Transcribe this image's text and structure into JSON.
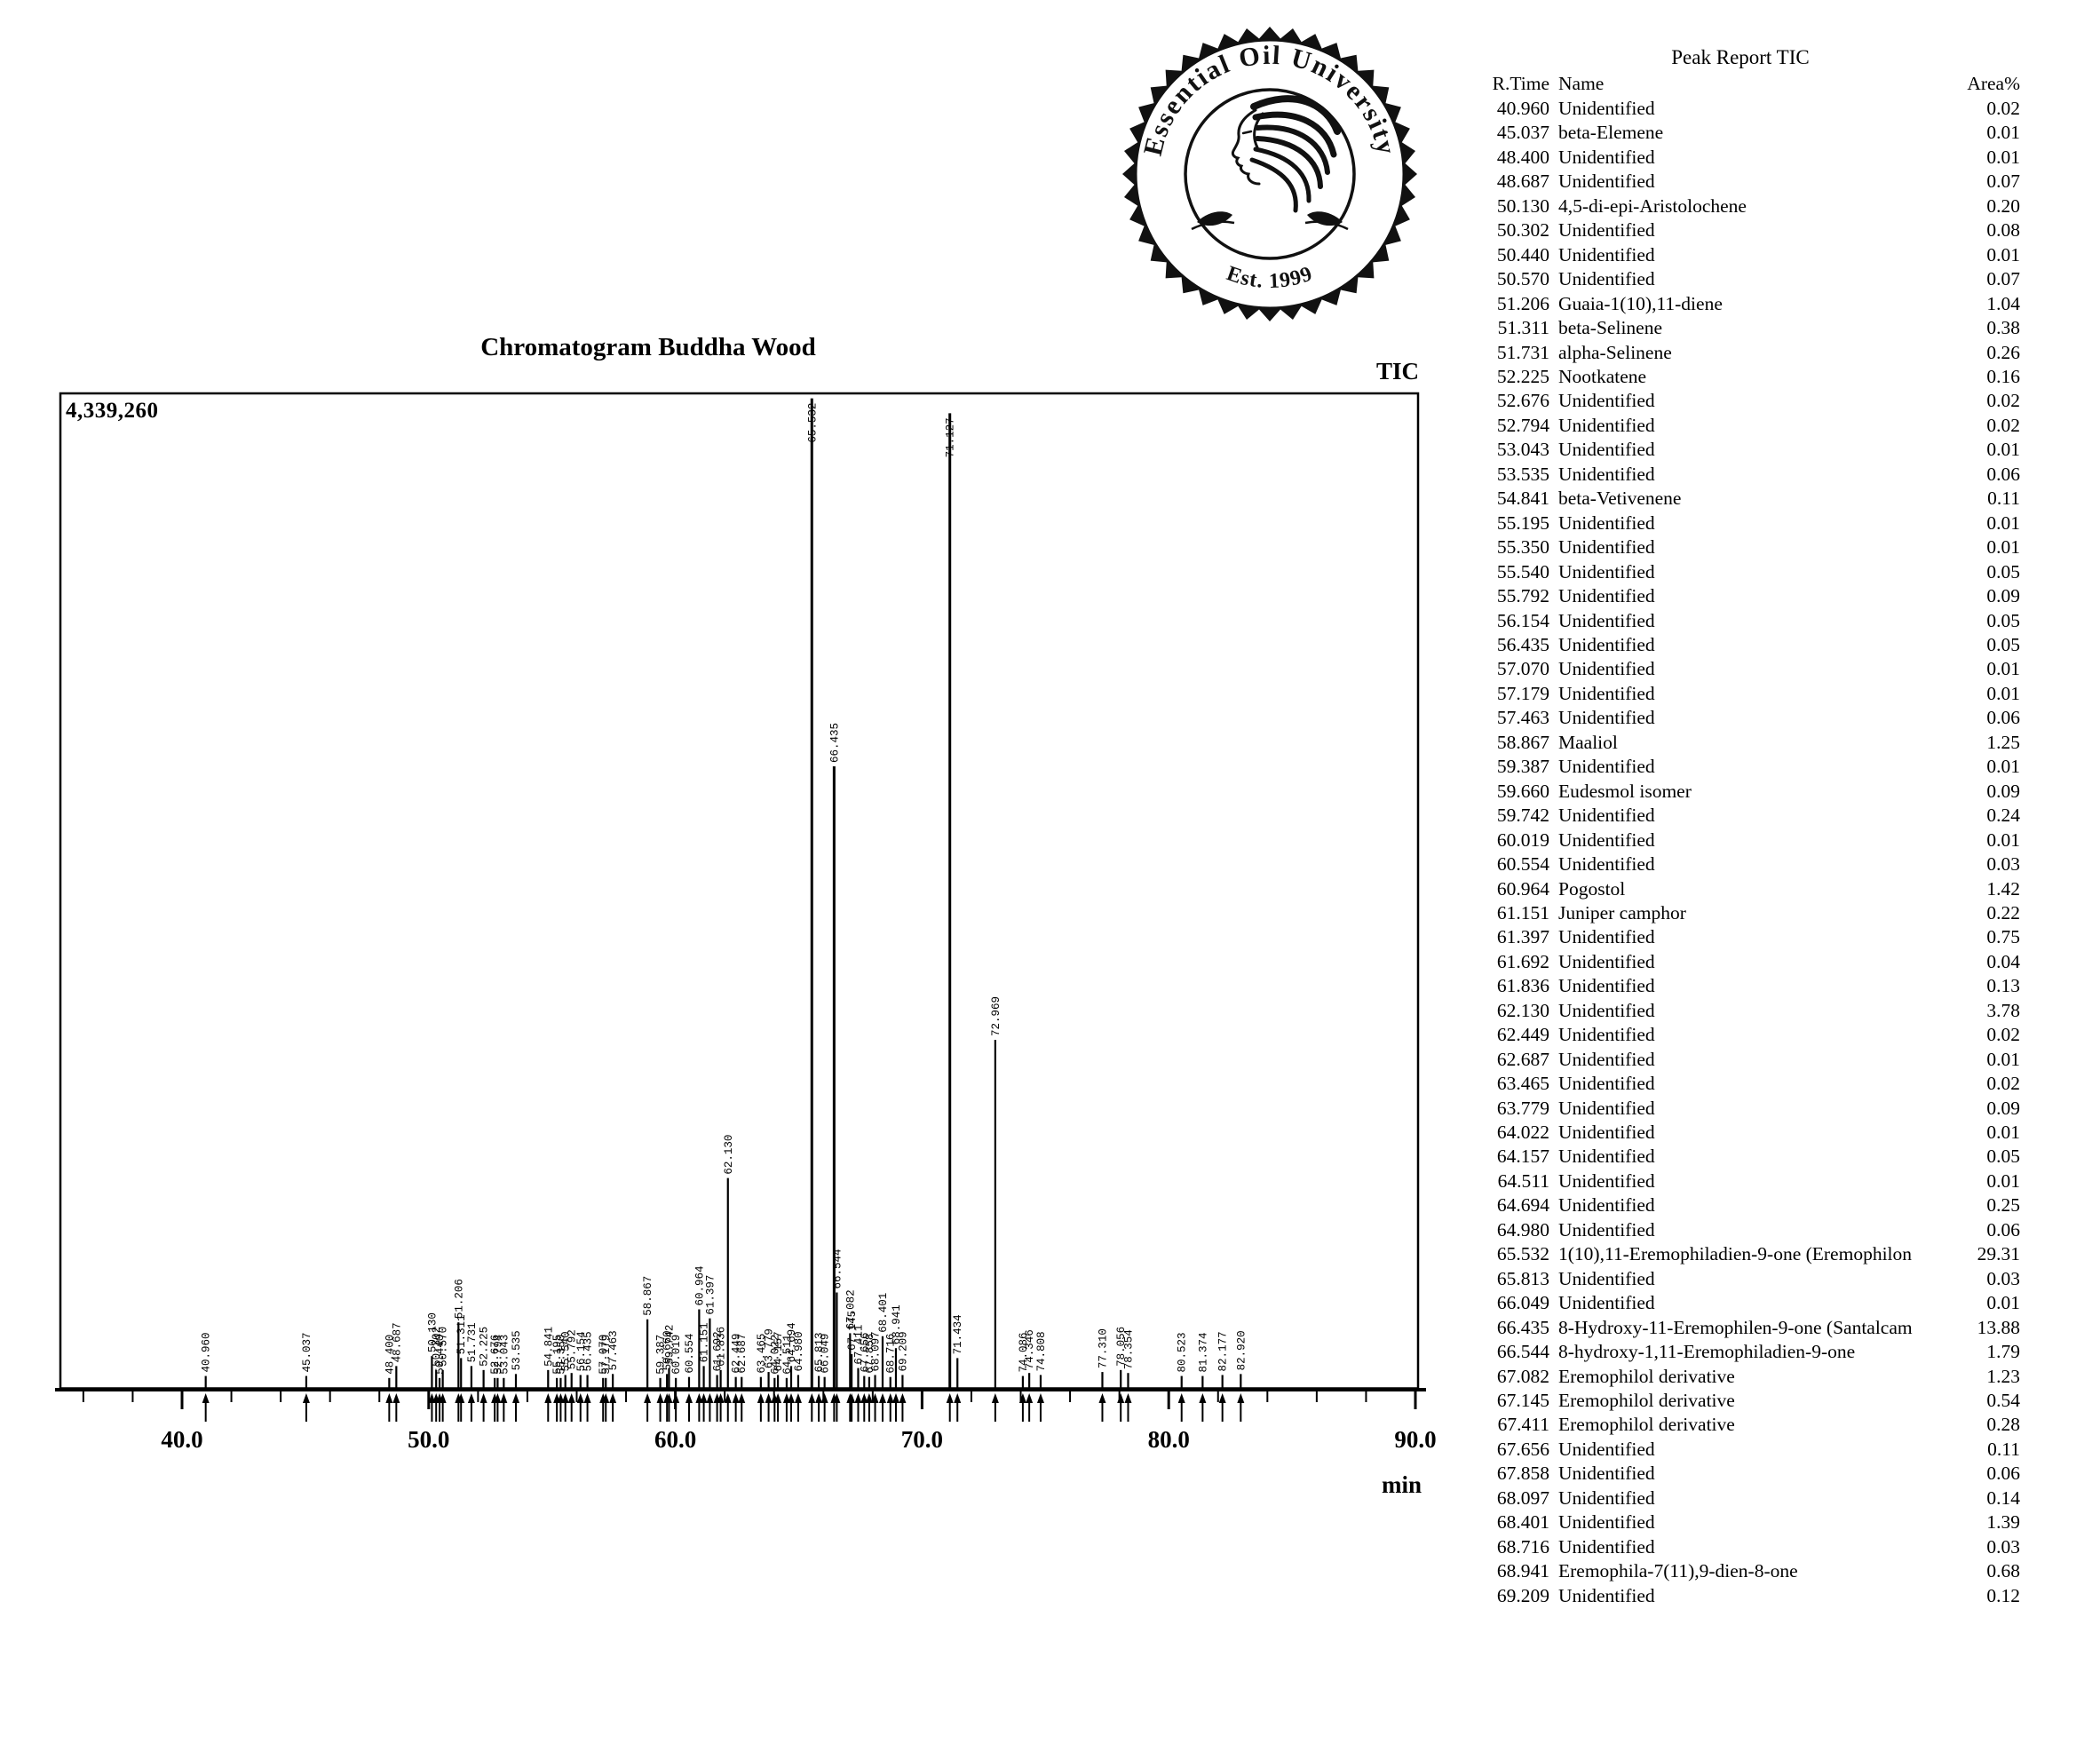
{
  "logo": {
    "arc_text": "Essential Oil University",
    "est_text": "Est. 1999"
  },
  "chart_data": {
    "type": "line",
    "title": "Chromatogram Buddha Wood",
    "signal": "TIC",
    "xlabel": "min",
    "y_full_scale": 4339260,
    "y_full_scale_label": "4,339,260",
    "x_range": [
      35.1,
      90.1
    ],
    "x_ticks": [
      40,
      50,
      60,
      70,
      80,
      90
    ],
    "x_tick_labels": [
      "40.0",
      "50.0",
      "60.0",
      "70.0",
      "80.0",
      "90.0"
    ],
    "minor_tick_step": 2,
    "grid": false,
    "peaks": [
      {
        "rt": "40.960",
        "h": 0.012,
        "area": "0.02"
      },
      {
        "rt": "45.037",
        "h": 0.012,
        "area": "0.01"
      },
      {
        "rt": "48.400",
        "h": 0.01,
        "area": "0.01"
      },
      {
        "rt": "48.687",
        "h": 0.022,
        "area": "0.07"
      },
      {
        "rt": "50.130",
        "h": 0.032,
        "area": "0.20"
      },
      {
        "rt": "50.302",
        "h": 0.018,
        "area": "0.08"
      },
      {
        "rt": "50.440",
        "h": 0.01,
        "area": "0.01"
      },
      {
        "rt": "50.570",
        "h": 0.018,
        "area": "0.07"
      },
      {
        "rt": "51.206",
        "h": 0.066,
        "area": "1.04"
      },
      {
        "rt": "51.311",
        "h": 0.03,
        "area": "0.38"
      },
      {
        "rt": "51.731",
        "h": 0.022,
        "area": "0.26"
      },
      {
        "rt": "52.225",
        "h": 0.018,
        "area": "0.16"
      },
      {
        "rt": "52.676",
        "h": 0.01,
        "area": "0.02"
      },
      {
        "rt": "52.794",
        "h": 0.01,
        "area": "0.02"
      },
      {
        "rt": "53.043",
        "h": 0.01,
        "area": "0.01"
      },
      {
        "rt": "53.535",
        "h": 0.014,
        "area": "0.06"
      },
      {
        "rt": "54.841",
        "h": 0.018,
        "area": "0.11"
      },
      {
        "rt": "55.195",
        "h": 0.01,
        "area": "0.01"
      },
      {
        "rt": "55.350",
        "h": 0.01,
        "area": "0.01"
      },
      {
        "rt": "55.540",
        "h": 0.013,
        "area": "0.05"
      },
      {
        "rt": "55.792",
        "h": 0.015,
        "area": "0.09"
      },
      {
        "rt": "56.154",
        "h": 0.013,
        "area": "0.05"
      },
      {
        "rt": "56.435",
        "h": 0.013,
        "area": "0.05"
      },
      {
        "rt": "57.070",
        "h": 0.01,
        "area": "0.01"
      },
      {
        "rt": "57.179",
        "h": 0.01,
        "area": "0.01"
      },
      {
        "rt": "57.463",
        "h": 0.014,
        "area": "0.06"
      },
      {
        "rt": "58.867",
        "h": 0.069,
        "area": "1.25"
      },
      {
        "rt": "59.387",
        "h": 0.01,
        "area": "0.01"
      },
      {
        "rt": "59.660",
        "h": 0.014,
        "area": "0.09"
      },
      {
        "rt": "59.742",
        "h": 0.02,
        "area": "0.24"
      },
      {
        "rt": "60.019",
        "h": 0.01,
        "area": "0.01"
      },
      {
        "rt": "60.554",
        "h": 0.011,
        "area": "0.03"
      },
      {
        "rt": "60.964",
        "h": 0.079,
        "area": "1.42"
      },
      {
        "rt": "61.151",
        "h": 0.022,
        "area": "0.22"
      },
      {
        "rt": "61.397",
        "h": 0.07,
        "area": "0.75"
      },
      {
        "rt": "61.692",
        "h": 0.013,
        "area": "0.04"
      },
      {
        "rt": "61.836",
        "h": 0.018,
        "area": "0.13"
      },
      {
        "rt": "62.130",
        "h": 0.211,
        "area": "3.78"
      },
      {
        "rt": "62.449",
        "h": 0.011,
        "area": "0.02"
      },
      {
        "rt": "62.687",
        "h": 0.011,
        "area": "0.01"
      },
      {
        "rt": "63.465",
        "h": 0.011,
        "area": "0.02"
      },
      {
        "rt": "63.779",
        "h": 0.016,
        "area": "0.09"
      },
      {
        "rt": "64.022",
        "h": 0.01,
        "area": "0.01"
      },
      {
        "rt": "64.157",
        "h": 0.013,
        "area": "0.05"
      },
      {
        "rt": "64.511",
        "h": 0.01,
        "area": "0.01"
      },
      {
        "rt": "64.694",
        "h": 0.022,
        "area": "0.25"
      },
      {
        "rt": "64.980",
        "h": 0.013,
        "area": "0.06"
      },
      {
        "rt": "65.532",
        "h": 0.995,
        "area": "29.31"
      },
      {
        "rt": "65.813",
        "h": 0.012,
        "area": "0.03"
      },
      {
        "rt": "66.049",
        "h": 0.011,
        "area": "0.01"
      },
      {
        "rt": "66.435",
        "h": 0.625,
        "area": "13.88"
      },
      {
        "rt": "66.544",
        "h": 0.096,
        "area": "1.79"
      },
      {
        "rt": "67.082",
        "h": 0.055,
        "area": "1.23"
      },
      {
        "rt": "67.145",
        "h": 0.034,
        "area": "0.54"
      },
      {
        "rt": "67.411",
        "h": 0.02,
        "area": "0.28"
      },
      {
        "rt": "67.656",
        "h": 0.012,
        "area": "0.11"
      },
      {
        "rt": "67.858",
        "h": 0.011,
        "area": "0.06"
      },
      {
        "rt": "68.097",
        "h": 0.013,
        "area": "0.14"
      },
      {
        "rt": "68.401",
        "h": 0.052,
        "area": "1.39"
      },
      {
        "rt": "68.716",
        "h": 0.011,
        "area": "0.03"
      },
      {
        "rt": "68.941",
        "h": 0.04,
        "area": "0.68"
      },
      {
        "rt": "69.209",
        "h": 0.013,
        "area": "0.12"
      },
      {
        "rt": "71.127",
        "h": 0.98
      },
      {
        "rt": "71.434",
        "h": 0.03
      },
      {
        "rt": "72.969",
        "h": 0.35
      },
      {
        "rt": "74.086",
        "h": 0.012
      },
      {
        "rt": "74.346",
        "h": 0.015
      },
      {
        "rt": "74.808",
        "h": 0.013
      },
      {
        "rt": "77.310",
        "h": 0.016
      },
      {
        "rt": "78.056",
        "h": 0.018
      },
      {
        "rt": "78.354",
        "h": 0.015
      },
      {
        "rt": "80.523",
        "h": 0.012
      },
      {
        "rt": "81.374",
        "h": 0.012
      },
      {
        "rt": "82.177",
        "h": 0.013
      },
      {
        "rt": "82.920",
        "h": 0.014
      }
    ]
  },
  "table": {
    "title": "Peak Report TIC",
    "columns": [
      "R.Time",
      "Name",
      "Area%"
    ],
    "rows": [
      [
        "40.960",
        "Unidentified",
        "0.02"
      ],
      [
        "45.037",
        "beta-Elemene",
        "0.01"
      ],
      [
        "48.400",
        "Unidentified",
        "0.01"
      ],
      [
        "48.687",
        "Unidentified",
        "0.07"
      ],
      [
        "50.130",
        "4,5-di-epi-Aristolochene",
        "0.20"
      ],
      [
        "50.302",
        "Unidentified",
        "0.08"
      ],
      [
        "50.440",
        "Unidentified",
        "0.01"
      ],
      [
        "50.570",
        "Unidentified",
        "0.07"
      ],
      [
        "51.206",
        "Guaia-1(10),11-diene",
        "1.04"
      ],
      [
        "51.311",
        "beta-Selinene",
        "0.38"
      ],
      [
        "51.731",
        "alpha-Selinene",
        "0.26"
      ],
      [
        "52.225",
        "Nootkatene",
        "0.16"
      ],
      [
        "52.676",
        "Unidentified",
        "0.02"
      ],
      [
        "52.794",
        "Unidentified",
        "0.02"
      ],
      [
        "53.043",
        "Unidentified",
        "0.01"
      ],
      [
        "53.535",
        "Unidentified",
        "0.06"
      ],
      [
        "54.841",
        "beta-Vetivenene",
        "0.11"
      ],
      [
        "55.195",
        "Unidentified",
        "0.01"
      ],
      [
        "55.350",
        "Unidentified",
        "0.01"
      ],
      [
        "55.540",
        "Unidentified",
        "0.05"
      ],
      [
        "55.792",
        "Unidentified",
        "0.09"
      ],
      [
        "56.154",
        "Unidentified",
        "0.05"
      ],
      [
        "56.435",
        "Unidentified",
        "0.05"
      ],
      [
        "57.070",
        "Unidentified",
        "0.01"
      ],
      [
        "57.179",
        "Unidentified",
        "0.01"
      ],
      [
        "57.463",
        "Unidentified",
        "0.06"
      ],
      [
        "58.867",
        "Maaliol",
        "1.25"
      ],
      [
        "59.387",
        "Unidentified",
        "0.01"
      ],
      [
        "59.660",
        "Eudesmol isomer",
        "0.09"
      ],
      [
        "59.742",
        "Unidentified",
        "0.24"
      ],
      [
        "60.019",
        "Unidentified",
        "0.01"
      ],
      [
        "60.554",
        "Unidentified",
        "0.03"
      ],
      [
        "60.964",
        "Pogostol",
        "1.42"
      ],
      [
        "61.151",
        "Juniper camphor",
        "0.22"
      ],
      [
        "61.397",
        "Unidentified",
        "0.75"
      ],
      [
        "61.692",
        "Unidentified",
        "0.04"
      ],
      [
        "61.836",
        "Unidentified",
        "0.13"
      ],
      [
        "62.130",
        "Unidentified",
        "3.78"
      ],
      [
        "62.449",
        "Unidentified",
        "0.02"
      ],
      [
        "62.687",
        "Unidentified",
        "0.01"
      ],
      [
        "63.465",
        "Unidentified",
        "0.02"
      ],
      [
        "63.779",
        "Unidentified",
        "0.09"
      ],
      [
        "64.022",
        "Unidentified",
        "0.01"
      ],
      [
        "64.157",
        "Unidentified",
        "0.05"
      ],
      [
        "64.511",
        "Unidentified",
        "0.01"
      ],
      [
        "64.694",
        "Unidentified",
        "0.25"
      ],
      [
        "64.980",
        "Unidentified",
        "0.06"
      ],
      [
        "65.532",
        "1(10),11-Eremophiladien-9-one (Eremophilon",
        "29.31"
      ],
      [
        "65.813",
        "Unidentified",
        "0.03"
      ],
      [
        "66.049",
        "Unidentified",
        "0.01"
      ],
      [
        "66.435",
        "8-Hydroxy-11-Eremophilen-9-one (Santalcam",
        "13.88"
      ],
      [
        "66.544",
        "8-hydroxy-1,11-Eremophiladien-9-one",
        "1.79"
      ],
      [
        "67.082",
        "Eremophilol derivative",
        "1.23"
      ],
      [
        "67.145",
        "Eremophilol derivative",
        "0.54"
      ],
      [
        "67.411",
        "Eremophilol derivative",
        "0.28"
      ],
      [
        "67.656",
        "Unidentified",
        "0.11"
      ],
      [
        "67.858",
        "Unidentified",
        "0.06"
      ],
      [
        "68.097",
        "Unidentified",
        "0.14"
      ],
      [
        "68.401",
        "Unidentified",
        "1.39"
      ],
      [
        "68.716",
        "Unidentified",
        "0.03"
      ],
      [
        "68.941",
        "Eremophila-7(11),9-dien-8-one",
        "0.68"
      ],
      [
        "69.209",
        "Unidentified",
        "0.12"
      ]
    ]
  }
}
